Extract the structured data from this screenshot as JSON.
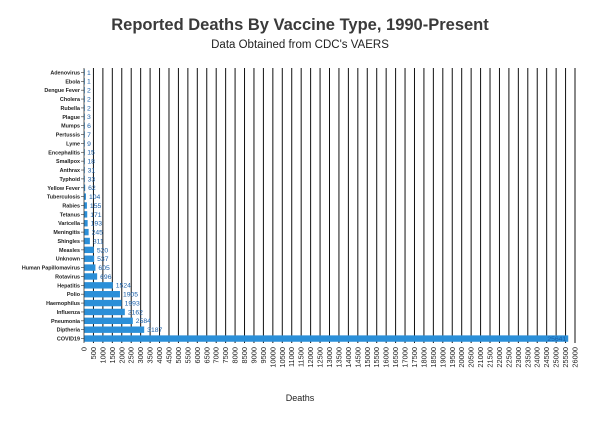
{
  "chart_data": {
    "type": "bar",
    "orientation": "horizontal",
    "title": "Reported Deaths By Vaccine Type, 1990-Present",
    "subtitle": "Data Obtained from CDC's VAERS",
    "xlabel": "Deaths",
    "ylabel": "",
    "xlim": [
      0,
      26000
    ],
    "x_ticks": [
      0,
      500,
      1000,
      1500,
      2000,
      2500,
      3000,
      3500,
      4000,
      4500,
      5000,
      5500,
      6000,
      6500,
      7000,
      7500,
      8000,
      8500,
      9000,
      9500,
      10000,
      10500,
      11000,
      11500,
      12000,
      12500,
      13000,
      13500,
      14000,
      14500,
      15000,
      15500,
      16000,
      16500,
      17000,
      17500,
      18000,
      18500,
      19000,
      19500,
      20000,
      20500,
      21000,
      21500,
      22000,
      22500,
      23000,
      23500,
      24000,
      24500,
      25000,
      25500,
      26000
    ],
    "grid": "vertical",
    "bar_color": "#2b8fd8",
    "categories": [
      "Adenovirus",
      "Ebola",
      "Dengue Fever",
      "Cholera",
      "Rubella",
      "Plague",
      "Mumps",
      "Pertussis",
      "Lyme",
      "Encephalitis",
      "Smallpox",
      "Anthrax",
      "Typhoid",
      "Yellow Fever",
      "Tuberculosis",
      "Rabies",
      "Tetanus",
      "Varicella",
      "Meningitis",
      "Shingles",
      "Measles",
      "Unknown",
      "Human Papillomavirus",
      "Rotavirus",
      "Hepatitis",
      "Polio",
      "Haemophilus",
      "Influenza",
      "Pneumonia",
      "Diptheria",
      "COVID19"
    ],
    "values": [
      1,
      1,
      2,
      2,
      2,
      3,
      6,
      7,
      9,
      15,
      18,
      31,
      33,
      62,
      104,
      155,
      171,
      193,
      245,
      311,
      520,
      537,
      605,
      696,
      1524,
      1905,
      1993,
      2162,
      2584,
      3187,
      25641
    ]
  }
}
